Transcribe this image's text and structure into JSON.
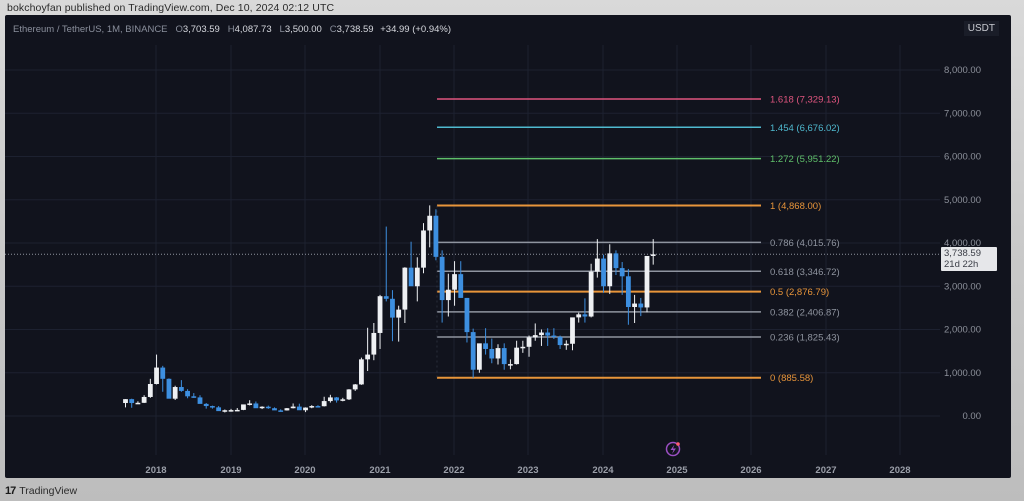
{
  "publisher_line": "bokchoyfan published on TradingView.com, Dec 10, 2024 02:12 UTC",
  "legend": {
    "symbol": "Ethereum / TetherUS, 1M, BINANCE",
    "open_key": "O",
    "open": "3,703.59",
    "high_key": "H",
    "high": "4,087.73",
    "low_key": "L",
    "low": "3,500.00",
    "close_key": "C",
    "close": "3,738.59",
    "change": "+34.99 (+0.94%)"
  },
  "currency": "USDT",
  "price_tag": {
    "price": "3,738.59",
    "countdown": "21d 22h"
  },
  "footer": {
    "logo_mark": "17",
    "logo_text": "TradingView"
  },
  "icons": {
    "event_icon": "lightning-event-icon"
  },
  "colors": {
    "background": "#11131d",
    "up_candle": "#eef0f3",
    "down_candle": "#3d8fe0",
    "fib_orange": "#e8953a",
    "fib_gray": "#8f949f",
    "fib_green": "#5fbf6a",
    "fib_cyan": "#4fb9cf",
    "fib_pink": "#e0557f",
    "grid": "#1d2130"
  },
  "chart_data": {
    "type": "candlestick",
    "title": "Ethereum / TetherUS, 1M, BINANCE",
    "xlabel": "",
    "ylabel": "USDT",
    "ylim": [
      -100,
      8600
    ],
    "y_ticks": [
      "0.00",
      "1,000.00",
      "2,000.00",
      "3,000.00",
      "4,000.00",
      "5,000.00",
      "6,000.00",
      "7,000.00",
      "8,000.00"
    ],
    "y_tick_values": [
      0,
      1000,
      2000,
      3000,
      4000,
      5000,
      6000,
      7000,
      8000
    ],
    "x_ticks": [
      "2018",
      "2019",
      "2020",
      "2021",
      "2022",
      "2023",
      "2024",
      "2025",
      "2026",
      "2027",
      "2028"
    ],
    "grid": true,
    "fibonacci": [
      {
        "level": "1.618",
        "price": "7,329.13",
        "value": 7329.13,
        "color": "#e0557f"
      },
      {
        "level": "1.454",
        "price": "6,676.02",
        "value": 6676.02,
        "color": "#4fb9cf"
      },
      {
        "level": "1.272",
        "price": "5,951.22",
        "value": 5951.22,
        "color": "#5fbf6a"
      },
      {
        "level": "1",
        "price": "4,868.00",
        "value": 4868.0,
        "color": "#e8953a"
      },
      {
        "level": "0.786",
        "price": "4,015.76",
        "value": 4015.76,
        "color": "#8f949f"
      },
      {
        "level": "0.618",
        "price": "3,346.72",
        "value": 3346.72,
        "color": "#8f949f"
      },
      {
        "level": "0.5",
        "price": "2,876.79",
        "value": 2876.79,
        "color": "#e8953a"
      },
      {
        "level": "0.382",
        "price": "2,406.87",
        "value": 2406.87,
        "color": "#8f949f"
      },
      {
        "level": "0.236",
        "price": "1,825.43",
        "value": 1825.43,
        "color": "#8f949f"
      },
      {
        "level": "0",
        "price": "885.58",
        "value": 885.58,
        "color": "#e8953a"
      }
    ],
    "current_price": 3738.59,
    "candles_ohlc_note": "monthly ETH/USDT from Aug 2017 to Dec 2024, approx",
    "candles": [
      [
        300,
        390,
        200,
        390
      ],
      [
        390,
        400,
        190,
        300
      ],
      [
        300,
        340,
        280,
        305
      ],
      [
        305,
        480,
        300,
        440
      ],
      [
        440,
        860,
        420,
        740
      ],
      [
        740,
        1420,
        730,
        1120
      ],
      [
        1120,
        1160,
        560,
        860
      ],
      [
        860,
        870,
        560,
        400
      ],
      [
        400,
        700,
        370,
        670
      ],
      [
        670,
        830,
        560,
        580
      ],
      [
        580,
        620,
        410,
        455
      ],
      [
        455,
        530,
        420,
        430
      ],
      [
        430,
        480,
        350,
        280
      ],
      [
        280,
        300,
        170,
        230
      ],
      [
        230,
        240,
        170,
        200
      ],
      [
        200,
        230,
        130,
        113
      ],
      [
        113,
        150,
        82,
        133
      ],
      [
        133,
        165,
        100,
        136
      ],
      [
        136,
        185,
        130,
        141
      ],
      [
        141,
        180,
        135,
        268
      ],
      [
        268,
        365,
        245,
        290
      ],
      [
        290,
        335,
        210,
        180
      ],
      [
        180,
        225,
        160,
        215
      ],
      [
        215,
        240,
        165,
        180
      ],
      [
        180,
        200,
        150,
        130
      ],
      [
        130,
        155,
        118,
        129
      ],
      [
        129,
        185,
        125,
        180
      ],
      [
        180,
        290,
        175,
        218
      ],
      [
        218,
        285,
        200,
        133
      ],
      [
        133,
        200,
        90,
        195
      ],
      [
        195,
        250,
        180,
        230
      ],
      [
        230,
        250,
        210,
        226
      ],
      [
        226,
        445,
        220,
        345
      ],
      [
        345,
        490,
        310,
        430
      ],
      [
        430,
        440,
        310,
        360
      ],
      [
        360,
        420,
        340,
        385
      ],
      [
        385,
        620,
        370,
        615
      ],
      [
        615,
        740,
        580,
        730
      ],
      [
        730,
        1350,
        720,
        1310
      ],
      [
        1310,
        2040,
        1040,
        1420
      ],
      [
        1420,
        2150,
        1290,
        1920
      ],
      [
        1920,
        2800,
        1550,
        2770
      ],
      [
        2770,
        4380,
        2650,
        2710
      ],
      [
        2710,
        2910,
        1730,
        2275
      ],
      [
        2275,
        2550,
        1720,
        2460
      ],
      [
        2460,
        3440,
        2150,
        3430
      ],
      [
        3430,
        4030,
        3080,
        3000
      ],
      [
        3000,
        3670,
        2650,
        3430
      ],
      [
        3430,
        4460,
        3300,
        4290
      ],
      [
        4290,
        4870,
        3900,
        4630
      ],
      [
        4630,
        4780,
        3600,
        3680
      ],
      [
        3680,
        3830,
        2160,
        2680
      ],
      [
        2680,
        3290,
        2300,
        2920
      ],
      [
        2920,
        3580,
        2550,
        3280
      ],
      [
        3280,
        3580,
        2800,
        2730
      ],
      [
        2730,
        2730,
        1700,
        1940
      ],
      [
        1940,
        2020,
        880,
        1070
      ],
      [
        1070,
        1280,
        1000,
        1680
      ],
      [
        1680,
        2030,
        1420,
        1550
      ],
      [
        1550,
        1790,
        1220,
        1330
      ],
      [
        1330,
        1660,
        1190,
        1570
      ],
      [
        1570,
        1680,
        1070,
        1200
      ],
      [
        1200,
        1310,
        1080,
        1200
      ],
      [
        1200,
        1740,
        1190,
        1580
      ],
      [
        1580,
        1740,
        1460,
        1600
      ],
      [
        1600,
        1860,
        1370,
        1820
      ],
      [
        1820,
        2140,
        1740,
        1870
      ],
      [
        1870,
        2000,
        1620,
        1930
      ],
      [
        1930,
        2030,
        1620,
        1860
      ],
      [
        1860,
        2030,
        1780,
        1830
      ],
      [
        1830,
        1860,
        1550,
        1640
      ],
      [
        1640,
        1750,
        1530,
        1670
      ],
      [
        1670,
        2140,
        1520,
        2280
      ],
      [
        2280,
        2390,
        2160,
        2350
      ],
      [
        2350,
        2720,
        2160,
        2300
      ],
      [
        2300,
        3520,
        2280,
        3340
      ],
      [
        3340,
        4090,
        3200,
        3640
      ],
      [
        3640,
        3730,
        2850,
        3000
      ],
      [
        3000,
        3970,
        2820,
        3760
      ],
      [
        3760,
        3830,
        3260,
        3420
      ],
      [
        3420,
        3560,
        2800,
        3230
      ],
      [
        3230,
        3400,
        2110,
        2520
      ],
      [
        2520,
        2800,
        2150,
        2600
      ],
      [
        2600,
        2730,
        2310,
        2510
      ],
      [
        2510,
        3450,
        2400,
        3700
      ],
      [
        3700,
        4090,
        3500,
        3738
      ]
    ]
  }
}
